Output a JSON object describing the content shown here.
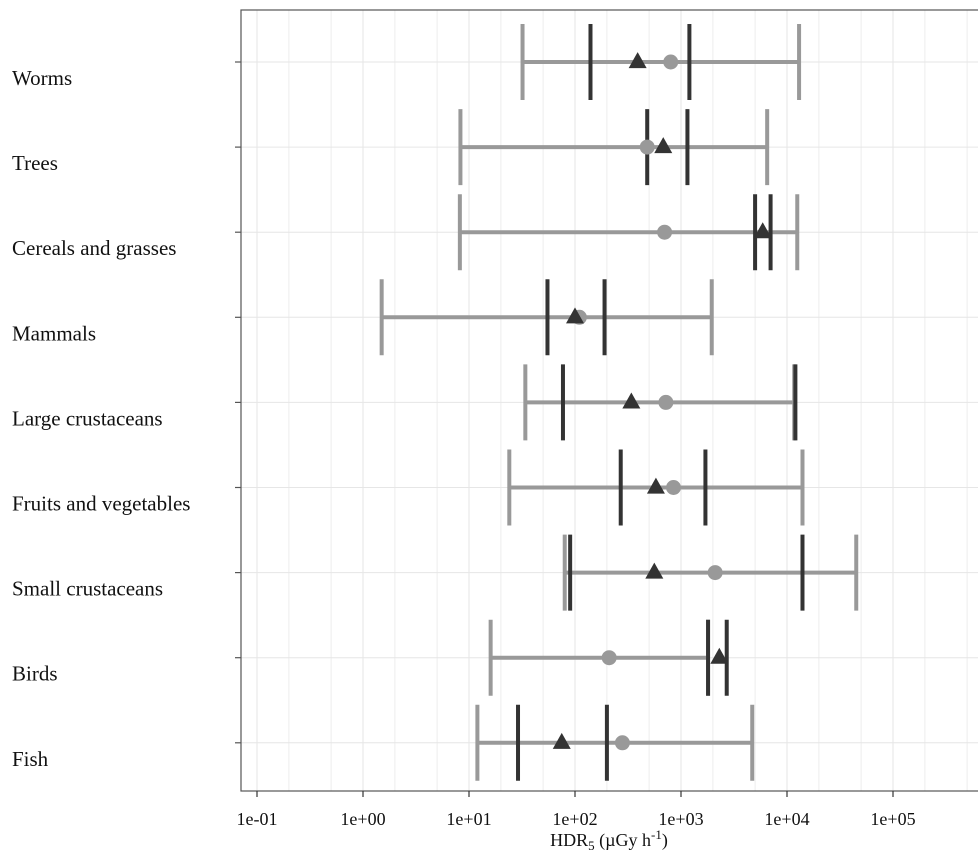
{
  "chart_data": {
    "type": "dot-interval",
    "x_scale": "log10",
    "xlim": [
      0.06,
      1000000
    ],
    "x_ticks": [
      0.1,
      1,
      10,
      100,
      1000,
      10000,
      100000
    ],
    "x_tick_labels": [
      "1e-01",
      "1e+00",
      "1e+01",
      "1e+02",
      "1e+03",
      "1e+04",
      "1e+05"
    ],
    "xlabel": "HDR5 (µGy h-1)",
    "xlabel_parts": {
      "main": "HDR",
      "sub": "5",
      "unit_open": " (µGy h",
      "sup": "-1",
      "unit_close": ")"
    },
    "ylabel": "",
    "grid": true,
    "categories": [
      "Worms",
      "Trees",
      "Cereals and grasses",
      "Mammals",
      "Large  crustaceans",
      "Fruits and vegetables",
      "Small  crustaceans",
      "Birds",
      "Fish"
    ],
    "series": [
      {
        "marker": "circle",
        "color": "#999999",
        "values": [
          800,
          480,
          700,
          110,
          720,
          850,
          2100,
          210,
          280
        ],
        "interval_low": [
          32,
          8.3,
          8.2,
          1.5,
          34,
          24,
          80,
          16,
          12
        ],
        "interval_high": [
          13000,
          6500,
          12500,
          1950,
          11700,
          14000,
          45000,
          1800,
          4700
        ]
      },
      {
        "marker": "triangle",
        "color": "#333333",
        "values": [
          390,
          680,
          5900,
          100,
          340,
          580,
          560,
          2300,
          75
        ],
        "interval_low": [
          140,
          480,
          5000,
          55,
          77,
          270,
          90,
          1800,
          29
        ],
        "interval_high": [
          1200,
          1150,
          7000,
          190,
          12000,
          1700,
          14000,
          2700,
          200
        ]
      }
    ],
    "colors": {
      "light": "#999999",
      "dark": "#333333",
      "grid": "#e6e6e6",
      "panel_border": "#555555"
    }
  }
}
